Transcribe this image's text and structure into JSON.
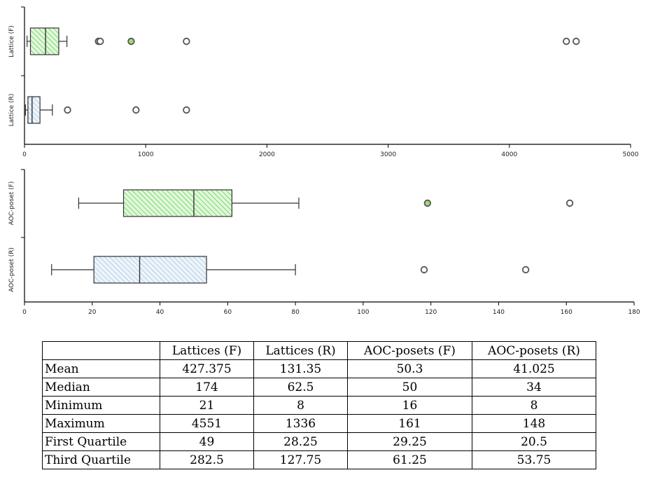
{
  "chart_data": [
    {
      "type": "boxplot",
      "orientation": "horizontal",
      "xlim": [
        0,
        5000
      ],
      "x_ticks": [
        "0",
        "1000",
        "2000",
        "3000",
        "4000",
        "5000"
      ],
      "grid": false,
      "series": [
        {
          "name": "Lattice (F)",
          "color": "#33dd33",
          "fill": "#e6f5dd",
          "hatch": "diagonal",
          "whisker_low": 21,
          "q1": 49,
          "median": 174,
          "q3": 282.5,
          "whisker_high": 350,
          "outliers": [
            610,
            625,
            880,
            1336,
            4470,
            4551
          ],
          "filled_outliers": [
            610,
            880
          ]
        },
        {
          "name": "Lattice (R)",
          "color": "#88b8e0",
          "fill": "#e8f0f8",
          "hatch": "diagonal",
          "whisker_low": 8,
          "q1": 28.25,
          "median": 62.5,
          "q3": 127.75,
          "whisker_high": 230,
          "outliers": [
            355,
            920,
            1336
          ],
          "filled_outliers": []
        }
      ]
    },
    {
      "type": "boxplot",
      "orientation": "horizontal",
      "xlim": [
        0,
        180
      ],
      "x_ticks": [
        "0",
        "20",
        "40",
        "60",
        "80",
        "100",
        "120",
        "140",
        "160",
        "180"
      ],
      "grid": false,
      "series": [
        {
          "name": "AOC-poset (F)",
          "color": "#33dd33",
          "fill": "#e6f5dd",
          "hatch": "diagonal",
          "whisker_low": 16,
          "q1": 29.25,
          "median": 50,
          "q3": 61.25,
          "whisker_high": 81,
          "outliers": [
            119,
            161
          ],
          "filled_outliers": [
            119
          ]
        },
        {
          "name": "AOC-poset (R)",
          "color": "#88b8e0",
          "fill": "#e8f0f8",
          "hatch": "diagonal",
          "whisker_low": 8,
          "q1": 20.5,
          "median": 34,
          "q3": 53.75,
          "whisker_high": 80,
          "outliers": [
            118,
            148
          ],
          "filled_outliers": []
        }
      ]
    },
    {
      "type": "table",
      "columns": [
        "",
        "Lattices (F)",
        "Lattices (R)",
        "AOC-posets (F)",
        "AOC-posets (R)"
      ],
      "rows": [
        {
          "label": "Mean",
          "values": [
            "427.375",
            "131.35",
            "50.3",
            "41.025"
          ]
        },
        {
          "label": "Median",
          "values": [
            "174",
            "62.5",
            "50",
            "34"
          ]
        },
        {
          "label": "Minimum",
          "values": [
            "21",
            "8",
            "16",
            "8"
          ]
        },
        {
          "label": "Maximum",
          "values": [
            "4551",
            "1336",
            "161",
            "148"
          ]
        },
        {
          "label": "First Quartile",
          "values": [
            "49",
            "28.25",
            "29.25",
            "20.5"
          ]
        },
        {
          "label": "Third Quartile",
          "values": [
            "282.5",
            "127.75",
            "61.25",
            "53.75"
          ]
        }
      ]
    }
  ]
}
